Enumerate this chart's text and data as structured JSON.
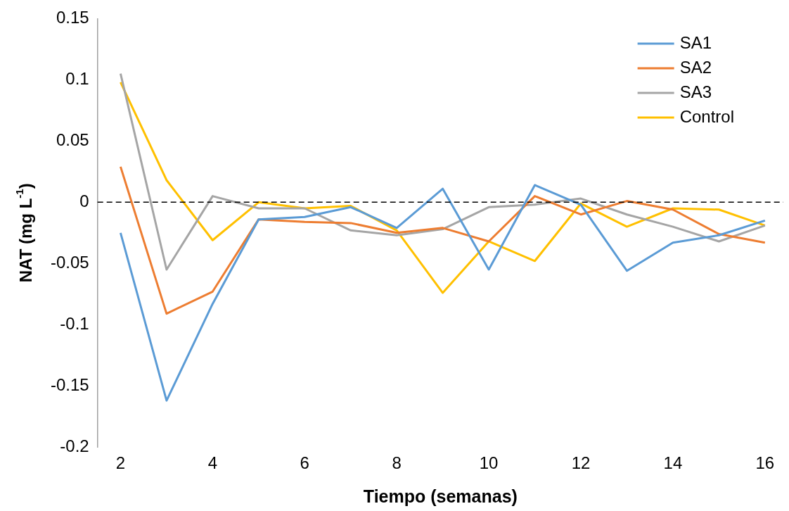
{
  "chart_data": {
    "type": "line",
    "xlabel": "Tiempo (semanas)",
    "ylabel": "NAT (mg L$^{-1}$)",
    "x": [
      2,
      3,
      4,
      5,
      6,
      7,
      8,
      9,
      10,
      11,
      12,
      13,
      14,
      15,
      16
    ],
    "series": [
      {
        "name": "SA1",
        "color": "#5b9bd5",
        "values": [
          -0.025,
          -0.162,
          -0.083,
          -0.014,
          -0.012,
          -0.004,
          -0.021,
          0.011,
          -0.055,
          0.014,
          -0.002,
          -0.056,
          -0.033,
          -0.027,
          -0.015
        ]
      },
      {
        "name": "SA2",
        "color": "#ed7d31",
        "values": [
          0.029,
          -0.091,
          -0.073,
          -0.014,
          -0.016,
          -0.017,
          -0.025,
          -0.021,
          -0.032,
          0.005,
          -0.01,
          0.001,
          -0.006,
          -0.026,
          -0.033
        ]
      },
      {
        "name": "SA3",
        "color": "#a5a5a5",
        "values": [
          0.105,
          -0.055,
          0.005,
          -0.005,
          -0.005,
          -0.023,
          -0.027,
          -0.022,
          -0.004,
          -0.002,
          0.003,
          -0.01,
          -0.02,
          -0.032,
          -0.019
        ]
      },
      {
        "name": "Control",
        "color": "#ffc000",
        "values": [
          0.098,
          0.018,
          -0.031,
          0,
          -0.005,
          -0.003,
          -0.023,
          -0.074,
          -0.032,
          -0.048,
          -0.001,
          -0.02,
          -0.005,
          -0.006,
          -0.019
        ]
      }
    ],
    "xlim": [
      1.5,
      16.4
    ],
    "xticks": [
      2,
      4,
      6,
      8,
      10,
      12,
      14,
      16
    ],
    "ylim": [
      -0.2,
      0.15
    ],
    "yticks": [
      -0.2,
      -0.15,
      -0.1,
      -0.05,
      0,
      0.05,
      0.1,
      0.15
    ],
    "ref_lines": [
      {
        "axis": "y",
        "value": 0,
        "color": "#000000",
        "line_style": "dashed"
      }
    ],
    "grid": false,
    "legend": "top right",
    "marker": "none",
    "line_style": "solid"
  }
}
